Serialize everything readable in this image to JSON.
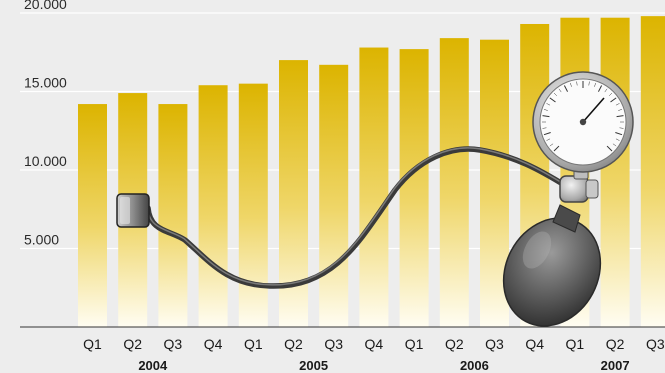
{
  "chart_data": {
    "type": "bar",
    "title": "",
    "xlabel": "",
    "ylabel": "",
    "ylim": [
      0,
      20000
    ],
    "yticks": [
      5000,
      10000,
      15000,
      20000
    ],
    "ytick_labels": [
      "5.000",
      "10.000",
      "15.000",
      "20.000"
    ],
    "grid": true,
    "categories": [
      "Q1",
      "Q2",
      "Q3",
      "Q4",
      "Q1",
      "Q2",
      "Q3",
      "Q4",
      "Q1",
      "Q2",
      "Q3",
      "Q4",
      "Q1",
      "Q2",
      "Q3"
    ],
    "years": [
      {
        "label": "2004",
        "start": 0,
        "end": 3
      },
      {
        "label": "2005",
        "start": 4,
        "end": 7
      },
      {
        "label": "2006",
        "start": 8,
        "end": 11
      },
      {
        "label": "2007",
        "start": 12,
        "end": 14
      }
    ],
    "values": [
      14200,
      14900,
      14200,
      15400,
      15500,
      17000,
      16700,
      17800,
      17700,
      18400,
      18300,
      19300,
      19700,
      19700,
      19800
    ],
    "colors": {
      "background": "#ededed",
      "bar_top": "#dcb400",
      "bar_bottom": "#fffdf2",
      "grid": "#ffffff",
      "axis": "#333333"
    },
    "illustration": "sphygmomanometer"
  }
}
